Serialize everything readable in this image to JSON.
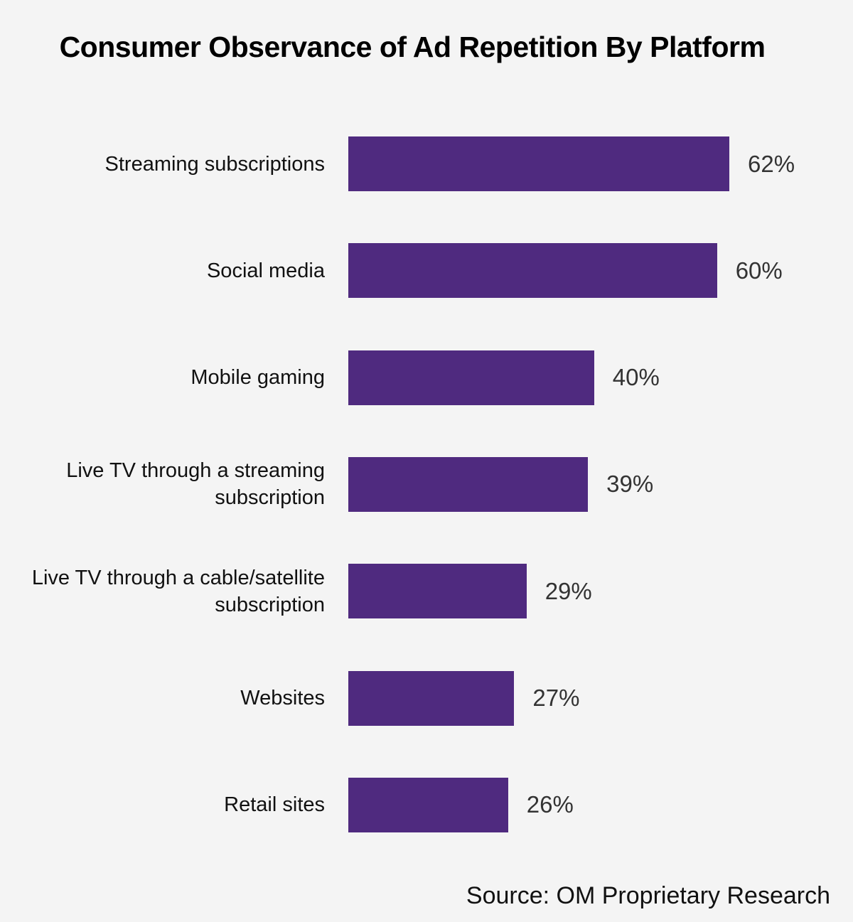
{
  "chart_data": {
    "type": "bar",
    "orientation": "horizontal",
    "title": "Consumer Observance of Ad Repetition By Platform",
    "categories": [
      "Streaming subscriptions",
      "Social media",
      "Mobile gaming",
      "Live TV through a streaming subscription",
      "Live TV through a cable/satellite subscription",
      "Websites",
      "Retail sites"
    ],
    "values": [
      62,
      60,
      40,
      39,
      29,
      27,
      26
    ],
    "value_labels": [
      "62%",
      "60%",
      "40%",
      "39%",
      "29%",
      "27%",
      "26%"
    ],
    "xlabel": "",
    "ylabel": "",
    "xlim": [
      0,
      62
    ],
    "grid": false,
    "bar_color": "#4f2a7f"
  },
  "source": "Source: OM Proprietary Research"
}
